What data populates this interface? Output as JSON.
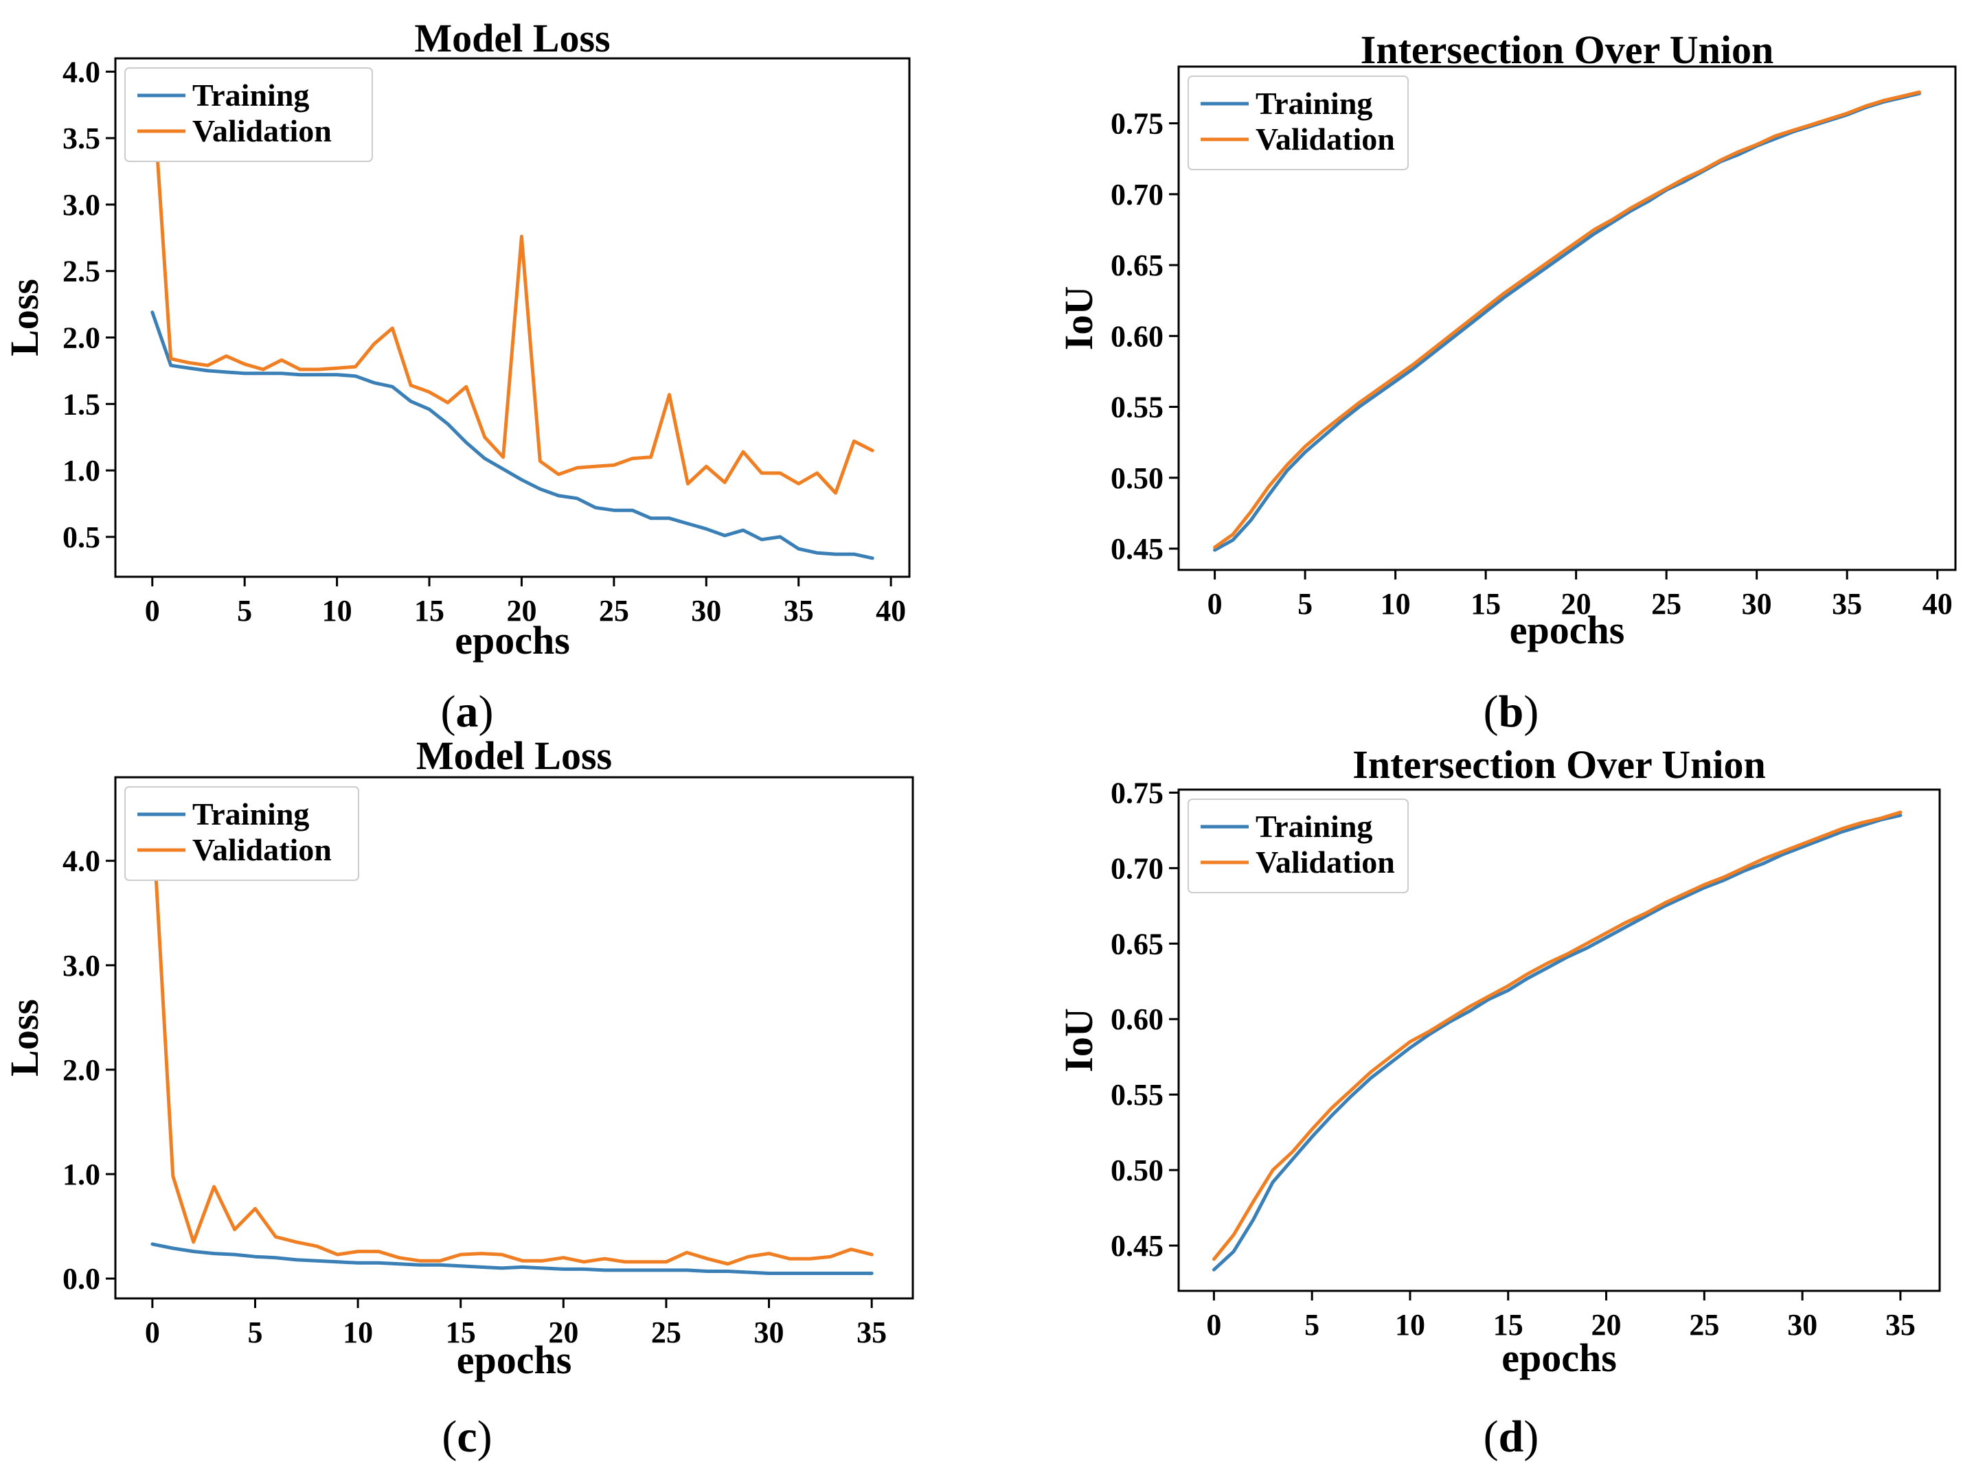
{
  "colors": {
    "training": "#3a7fb6",
    "validation": "#f07f24",
    "axis": "#000000"
  },
  "chart_data": [
    {
      "id": "a",
      "type": "line",
      "title": "Model Loss",
      "xlabel": "epochs",
      "ylabel": "Loss",
      "caption": "a",
      "xlim": [
        -2,
        41
      ],
      "ylim": [
        0.2,
        4.1
      ],
      "xticks": [
        0,
        5,
        10,
        15,
        20,
        25,
        30,
        35,
        40
      ],
      "yticks": [
        0.5,
        1.0,
        1.5,
        2.0,
        2.5,
        3.0,
        3.5,
        4.0
      ],
      "ytick_labels": [
        "0.5",
        "1.0",
        "1.5",
        "2.0",
        "2.5",
        "3.0",
        "3.5",
        "4.0"
      ],
      "legend": {
        "position": "top-left",
        "entries": [
          "Training",
          "Validation"
        ]
      },
      "series": [
        {
          "name": "Training",
          "color_key": "training",
          "x": [
            0,
            1,
            2,
            3,
            4,
            5,
            6,
            7,
            8,
            9,
            10,
            11,
            12,
            13,
            14,
            15,
            16,
            17,
            18,
            19,
            20,
            21,
            22,
            23,
            24,
            25,
            26,
            27,
            28,
            29,
            30,
            31,
            32,
            33,
            34,
            35,
            36,
            37,
            38,
            39
          ],
          "values": [
            2.19,
            1.79,
            1.77,
            1.75,
            1.74,
            1.73,
            1.73,
            1.73,
            1.72,
            1.72,
            1.72,
            1.71,
            1.66,
            1.63,
            1.52,
            1.46,
            1.35,
            1.21,
            1.09,
            1.01,
            0.93,
            0.86,
            0.81,
            0.79,
            0.72,
            0.7,
            0.7,
            0.64,
            0.64,
            0.6,
            0.56,
            0.51,
            0.55,
            0.48,
            0.5,
            0.41,
            0.38,
            0.37,
            0.37,
            0.34
          ]
        },
        {
          "name": "Validation",
          "color_key": "validation",
          "x": [
            0,
            1,
            2,
            3,
            4,
            5,
            6,
            7,
            8,
            9,
            10,
            11,
            12,
            13,
            14,
            15,
            16,
            17,
            18,
            19,
            20,
            21,
            22,
            23,
            24,
            25,
            26,
            27,
            28,
            29,
            30,
            31,
            32,
            33,
            34,
            35,
            36,
            37,
            38,
            39
          ],
          "values": [
            3.93,
            1.84,
            1.81,
            1.79,
            1.86,
            1.8,
            1.76,
            1.83,
            1.76,
            1.76,
            1.77,
            1.78,
            1.95,
            2.07,
            1.64,
            1.59,
            1.51,
            1.63,
            1.25,
            1.1,
            2.76,
            1.07,
            0.97,
            1.02,
            1.03,
            1.04,
            1.09,
            1.1,
            1.57,
            0.9,
            1.03,
            0.91,
            1.14,
            0.98,
            0.98,
            0.9,
            0.98,
            0.83,
            1.22,
            1.15
          ]
        }
      ]
    },
    {
      "id": "b",
      "type": "line",
      "title": "Intersection Over Union",
      "xlabel": "epochs",
      "ylabel": "IoU",
      "caption": "b",
      "xlim": [
        -2,
        41
      ],
      "ylim": [
        0.435,
        0.79
      ],
      "xticks": [
        0,
        5,
        10,
        15,
        20,
        25,
        30,
        35,
        40
      ],
      "yticks": [
        0.45,
        0.5,
        0.55,
        0.6,
        0.65,
        0.7,
        0.75
      ],
      "ytick_labels": [
        "0.45",
        "0.50",
        "0.55",
        "0.60",
        "0.65",
        "0.70",
        "0.75"
      ],
      "legend": {
        "position": "top-left",
        "entries": [
          "Training",
          "Validation"
        ]
      },
      "series": [
        {
          "name": "Training",
          "color_key": "training",
          "x": [
            0,
            1,
            2,
            3,
            4,
            5,
            6,
            7,
            8,
            9,
            10,
            11,
            12,
            13,
            14,
            15,
            16,
            17,
            18,
            19,
            20,
            21,
            22,
            23,
            24,
            25,
            26,
            27,
            28,
            29,
            30,
            31,
            32,
            33,
            34,
            35,
            36,
            37,
            38,
            39
          ],
          "values": [
            0.449,
            0.456,
            0.47,
            0.488,
            0.505,
            0.518,
            0.529,
            0.54,
            0.55,
            0.559,
            0.568,
            0.577,
            0.587,
            0.597,
            0.607,
            0.617,
            0.627,
            0.636,
            0.645,
            0.654,
            0.663,
            0.672,
            0.68,
            0.688,
            0.695,
            0.703,
            0.709,
            0.716,
            0.723,
            0.728,
            0.734,
            0.739,
            0.744,
            0.748,
            0.752,
            0.756,
            0.761,
            0.765,
            0.768,
            0.771
          ]
        },
        {
          "name": "Validation",
          "color_key": "validation",
          "x": [
            0,
            1,
            2,
            3,
            4,
            5,
            6,
            7,
            8,
            9,
            10,
            11,
            12,
            13,
            14,
            15,
            16,
            17,
            18,
            19,
            20,
            21,
            22,
            23,
            24,
            25,
            26,
            27,
            28,
            29,
            30,
            31,
            32,
            33,
            34,
            35,
            36,
            37,
            38,
            39
          ],
          "values": [
            0.451,
            0.46,
            0.476,
            0.494,
            0.509,
            0.522,
            0.533,
            0.543,
            0.553,
            0.562,
            0.571,
            0.58,
            0.59,
            0.6,
            0.61,
            0.62,
            0.63,
            0.639,
            0.648,
            0.657,
            0.666,
            0.675,
            0.682,
            0.69,
            0.697,
            0.704,
            0.711,
            0.717,
            0.724,
            0.73,
            0.735,
            0.741,
            0.745,
            0.749,
            0.753,
            0.757,
            0.762,
            0.766,
            0.769,
            0.772
          ]
        }
      ]
    },
    {
      "id": "c",
      "type": "line",
      "title": "Model Loss",
      "xlabel": "epochs",
      "ylabel": "Loss",
      "caption": "c",
      "xlim": [
        -1.8,
        37
      ],
      "ylim": [
        -0.19,
        4.8
      ],
      "xticks": [
        0,
        5,
        10,
        15,
        20,
        25,
        30,
        35
      ],
      "yticks": [
        0.0,
        1.0,
        2.0,
        3.0,
        4.0
      ],
      "ytick_labels": [
        "0.0",
        "1.0",
        "2.0",
        "3.0",
        "4.0"
      ],
      "legend": {
        "position": "top-left",
        "entries": [
          "Training",
          "Validation"
        ]
      },
      "series": [
        {
          "name": "Training",
          "color_key": "training",
          "x": [
            0,
            1,
            2,
            3,
            4,
            5,
            6,
            7,
            8,
            9,
            10,
            11,
            12,
            13,
            14,
            15,
            16,
            17,
            18,
            19,
            20,
            21,
            22,
            23,
            24,
            25,
            26,
            27,
            28,
            29,
            30,
            31,
            32,
            33,
            34,
            35
          ],
          "values": [
            0.33,
            0.29,
            0.26,
            0.24,
            0.23,
            0.21,
            0.2,
            0.18,
            0.17,
            0.16,
            0.15,
            0.15,
            0.14,
            0.13,
            0.13,
            0.12,
            0.11,
            0.1,
            0.11,
            0.1,
            0.09,
            0.09,
            0.08,
            0.08,
            0.08,
            0.08,
            0.08,
            0.07,
            0.07,
            0.06,
            0.05,
            0.05,
            0.05,
            0.05,
            0.05,
            0.05
          ]
        },
        {
          "name": "Validation",
          "color_key": "validation",
          "x": [
            0,
            1,
            2,
            3,
            4,
            5,
            6,
            7,
            8,
            9,
            10,
            11,
            12,
            13,
            14,
            15,
            16,
            17,
            18,
            19,
            20,
            21,
            22,
            23,
            24,
            25,
            26,
            27,
            28,
            29,
            30,
            31,
            32,
            33,
            34,
            35
          ],
          "values": [
            4.45,
            0.98,
            0.35,
            0.88,
            0.47,
            0.67,
            0.4,
            0.35,
            0.31,
            0.23,
            0.26,
            0.26,
            0.2,
            0.17,
            0.17,
            0.23,
            0.24,
            0.23,
            0.17,
            0.17,
            0.2,
            0.16,
            0.19,
            0.16,
            0.16,
            0.16,
            0.25,
            0.19,
            0.14,
            0.21,
            0.24,
            0.19,
            0.19,
            0.21,
            0.28,
            0.23
          ]
        }
      ]
    },
    {
      "id": "d",
      "type": "line",
      "title": "Intersection Over Union",
      "xlabel": "epochs",
      "ylabel": "IoU",
      "caption": "d",
      "xlim": [
        -1.8,
        37
      ],
      "ylim": [
        0.42,
        0.752
      ],
      "xticks": [
        0,
        5,
        10,
        15,
        20,
        25,
        30,
        35
      ],
      "yticks": [
        0.45,
        0.5,
        0.55,
        0.6,
        0.65,
        0.7,
        0.75
      ],
      "ytick_labels": [
        "0.45",
        "0.50",
        "0.55",
        "0.60",
        "0.65",
        "0.70",
        "0.75"
      ],
      "legend": {
        "position": "top-left",
        "entries": [
          "Training",
          "Validation"
        ]
      },
      "series": [
        {
          "name": "Training",
          "color_key": "training",
          "x": [
            0,
            1,
            2,
            3,
            4,
            5,
            6,
            7,
            8,
            9,
            10,
            11,
            12,
            13,
            14,
            15,
            16,
            17,
            18,
            19,
            20,
            21,
            22,
            23,
            24,
            25,
            26,
            27,
            28,
            29,
            30,
            31,
            32,
            33,
            34,
            35
          ],
          "values": [
            0.434,
            0.446,
            0.467,
            0.492,
            0.507,
            0.522,
            0.536,
            0.549,
            0.561,
            0.571,
            0.581,
            0.59,
            0.598,
            0.605,
            0.613,
            0.619,
            0.627,
            0.634,
            0.641,
            0.647,
            0.654,
            0.661,
            0.668,
            0.675,
            0.681,
            0.687,
            0.692,
            0.698,
            0.703,
            0.709,
            0.714,
            0.719,
            0.724,
            0.728,
            0.732,
            0.735
          ]
        },
        {
          "name": "Validation",
          "color_key": "validation",
          "x": [
            0,
            1,
            2,
            3,
            4,
            5,
            6,
            7,
            8,
            9,
            10,
            11,
            12,
            13,
            14,
            15,
            16,
            17,
            18,
            19,
            20,
            21,
            22,
            23,
            24,
            25,
            26,
            27,
            28,
            29,
            30,
            31,
            32,
            33,
            34,
            35
          ],
          "values": [
            0.441,
            0.457,
            0.479,
            0.5,
            0.512,
            0.527,
            0.541,
            0.553,
            0.565,
            0.575,
            0.585,
            0.592,
            0.6,
            0.608,
            0.615,
            0.622,
            0.63,
            0.637,
            0.643,
            0.65,
            0.657,
            0.664,
            0.67,
            0.677,
            0.683,
            0.689,
            0.694,
            0.7,
            0.706,
            0.711,
            0.716,
            0.721,
            0.726,
            0.73,
            0.733,
            0.737
          ]
        }
      ]
    }
  ]
}
